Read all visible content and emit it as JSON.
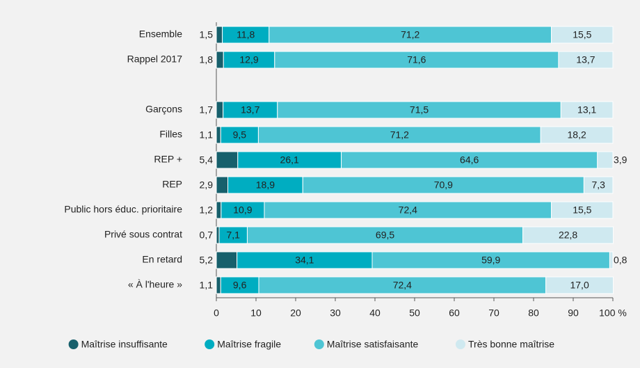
{
  "chart_data": {
    "type": "stacked-barh",
    "categories": [
      "Ensemble",
      "Rappel 2017",
      null,
      "Garçons",
      "Filles",
      "REP +",
      "REP",
      "Public hors éduc. prioritaire",
      "Privé sous contrat",
      "En retard",
      "« À l'heure »"
    ],
    "series": [
      {
        "name": "Maîtrise insuffisante",
        "color": "#17606c",
        "values": [
          1.5,
          1.8,
          null,
          1.7,
          1.1,
          5.4,
          2.9,
          1.2,
          0.7,
          5.2,
          1.1
        ],
        "value_labels": [
          "1,5",
          "1,8",
          null,
          "1,7",
          "1,1",
          "5,4",
          "2,9",
          "1,2",
          "0,7",
          "5,2",
          "1,1"
        ]
      },
      {
        "name": "Maîtrise fragile",
        "color": "#00adc1",
        "values": [
          11.8,
          12.9,
          null,
          13.7,
          9.5,
          26.1,
          18.9,
          10.9,
          7.1,
          34.1,
          9.6
        ],
        "value_labels": [
          "11,8",
          "12,9",
          null,
          "13,7",
          "9,5",
          "26,1",
          "18,9",
          "10,9",
          "7,1",
          "34,1",
          "9,6"
        ]
      },
      {
        "name": "Maîtrise satisfaisante",
        "color": "#4ec5d4",
        "values": [
          71.2,
          71.6,
          null,
          71.5,
          71.2,
          64.6,
          70.9,
          72.4,
          69.5,
          59.9,
          72.4
        ],
        "value_labels": [
          "71,2",
          "71,6",
          null,
          "71,5",
          "71,2",
          "64,6",
          "70,9",
          "72,4",
          "69,5",
          "59,9",
          "72,4"
        ]
      },
      {
        "name": "Très bonne maîtrise",
        "color": "#cfe9f0",
        "values": [
          15.5,
          13.7,
          null,
          13.1,
          18.2,
          3.9,
          7.3,
          15.5,
          22.8,
          0.8,
          17.0
        ],
        "value_labels": [
          "15,5",
          "13,7",
          null,
          "13,1",
          "18,2",
          "3,9",
          "7,3",
          "15,5",
          "22,8",
          "0,8",
          "17,0"
        ]
      }
    ],
    "xlim": [
      0,
      100
    ],
    "xticks": [
      0,
      10,
      20,
      30,
      40,
      50,
      60,
      70,
      80,
      90,
      {
        "value": 100,
        "label": "100 %"
      }
    ],
    "legend": "bottom"
  }
}
